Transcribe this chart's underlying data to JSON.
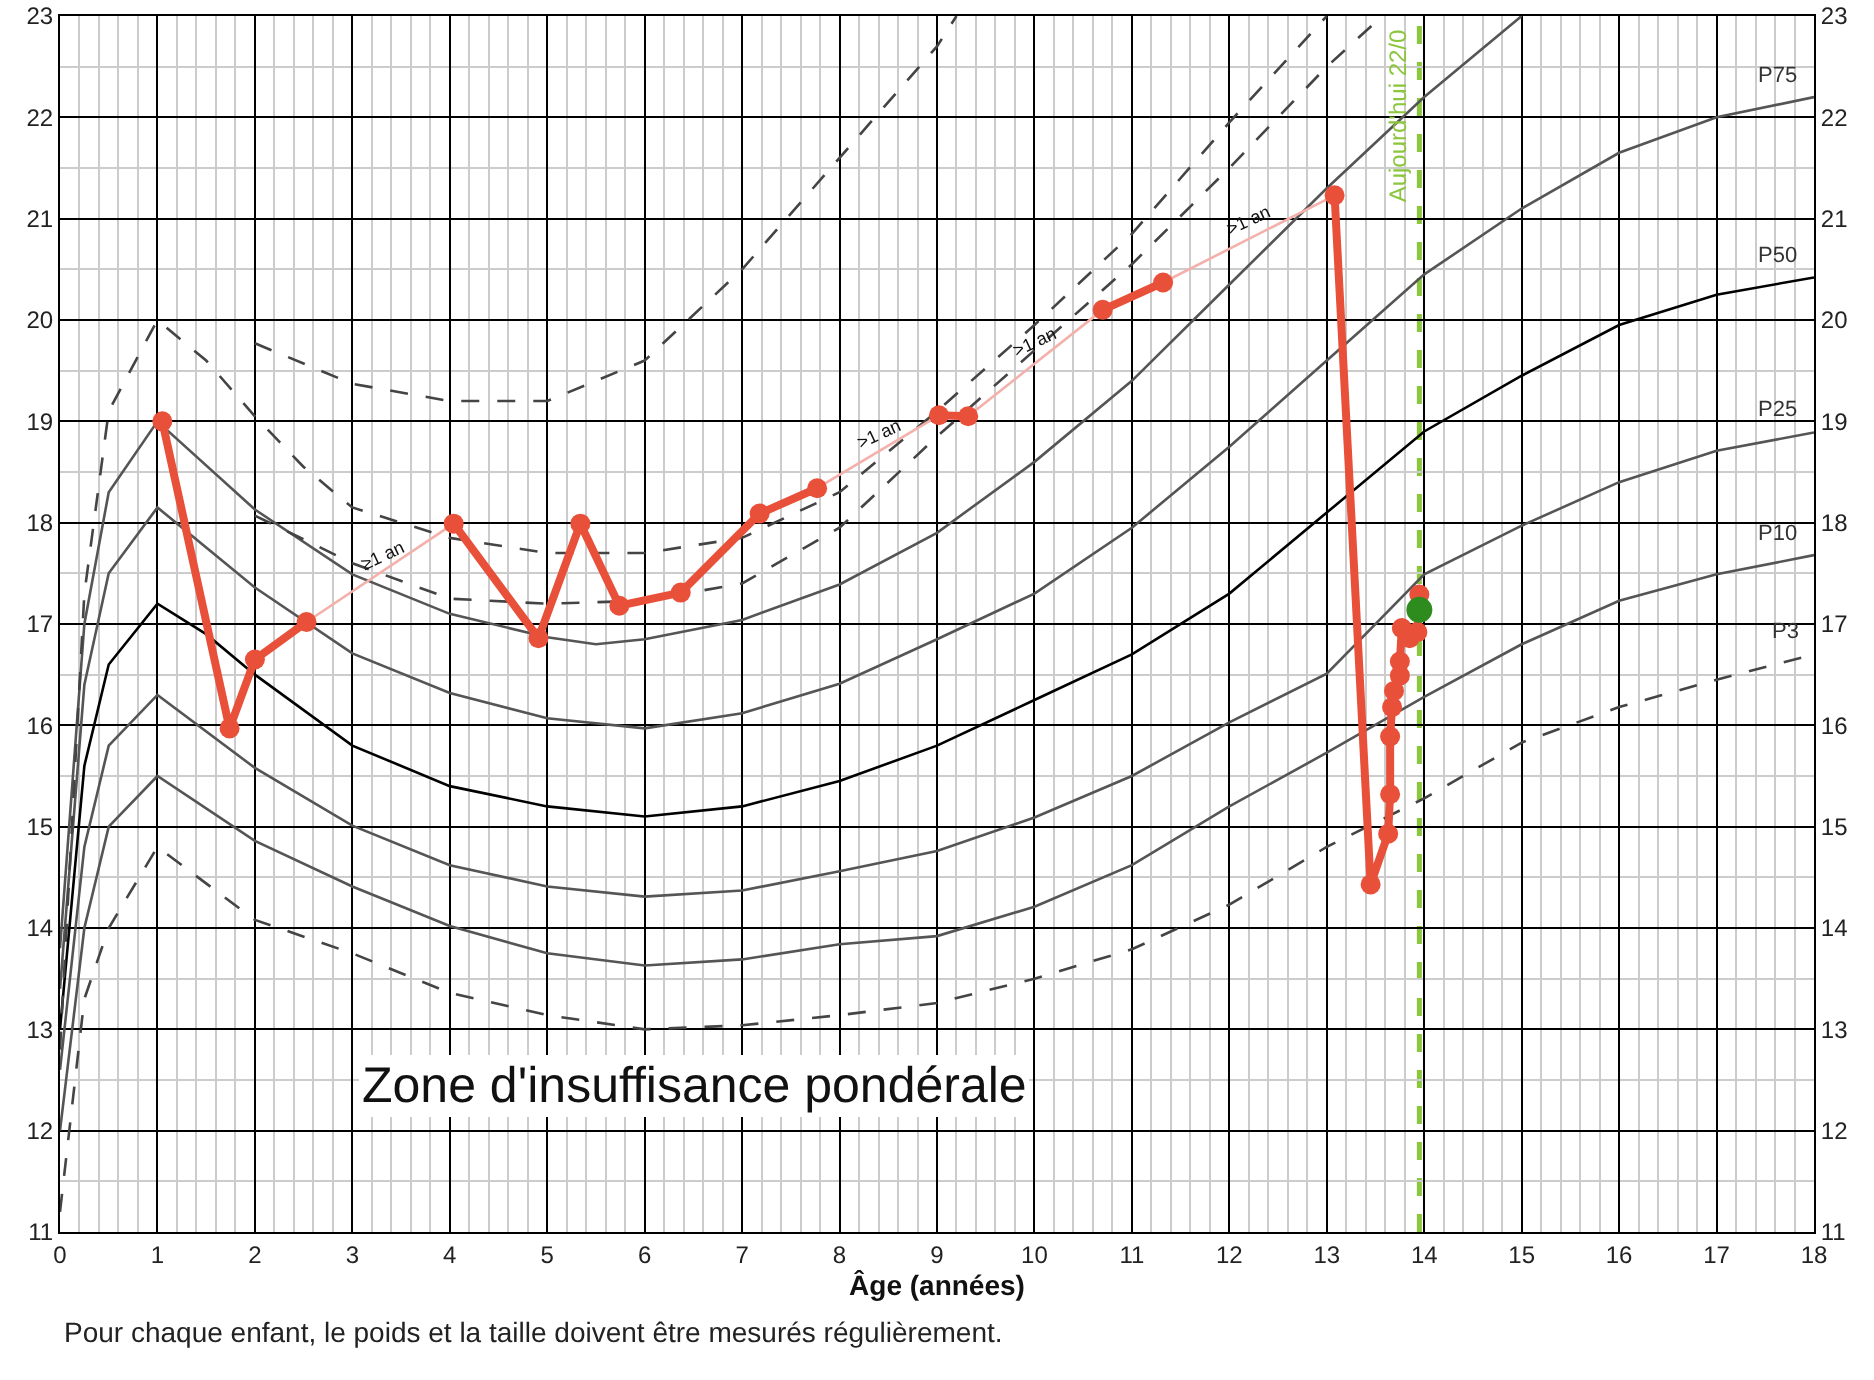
{
  "chart_data": {
    "type": "line",
    "xlabel": "Âge (années)",
    "xlim": [
      0,
      18
    ],
    "xticks": [
      0,
      1,
      2,
      3,
      4,
      5,
      6,
      7,
      8,
      9,
      10,
      11,
      12,
      13,
      14,
      15,
      16,
      17,
      18
    ],
    "ylim": [
      11,
      23
    ],
    "yticks": [
      11,
      12,
      13,
      14,
      15,
      16,
      17,
      18,
      19,
      20,
      21,
      22,
      23
    ],
    "y2lim": [
      11,
      23
    ],
    "y2ticks": [
      11,
      12,
      13,
      14,
      15,
      16,
      17,
      18,
      19,
      20,
      21,
      22,
      23
    ],
    "grid": true,
    "series": [
      {
        "name": "P3",
        "color": "#444444",
        "line_style": "dashed",
        "marker": "none",
        "x": [
          0,
          0.25,
          0.5,
          1,
          2,
          3,
          4,
          5,
          6,
          7,
          8,
          9,
          10,
          11,
          12,
          13,
          14,
          15,
          16,
          17,
          18
        ],
        "values": [
          11.2,
          13.3,
          14.0,
          14.8,
          14.08,
          13.75,
          13.36,
          13.14,
          13.0,
          13.04,
          13.14,
          13.26,
          13.5,
          13.79,
          14.23,
          14.8,
          15.28,
          15.83,
          16.18,
          16.45,
          16.7
        ]
      },
      {
        "name": "P10",
        "color": "#555555",
        "line_style": "solid",
        "marker": "none",
        "x": [
          0,
          0.25,
          0.5,
          1,
          2,
          3,
          4,
          5,
          6,
          7,
          8,
          9,
          10,
          11,
          12,
          13,
          14,
          15,
          16,
          17,
          18
        ],
        "values": [
          12.0,
          14.0,
          15.0,
          15.5,
          14.86,
          14.41,
          14.02,
          13.75,
          13.63,
          13.69,
          13.84,
          13.92,
          14.21,
          14.62,
          15.2,
          15.73,
          16.28,
          16.8,
          17.23,
          17.49,
          17.68
        ]
      },
      {
        "name": "P25",
        "color": "#555555",
        "line_style": "solid",
        "marker": "none",
        "x": [
          0,
          0.25,
          0.5,
          1,
          2,
          3,
          4,
          5,
          6,
          7,
          8,
          9,
          10,
          11,
          12,
          13,
          14,
          15,
          16,
          17,
          18
        ],
        "values": [
          12.6,
          14.8,
          15.8,
          16.3,
          15.58,
          15.01,
          14.62,
          14.41,
          14.31,
          14.37,
          14.56,
          14.76,
          15.09,
          15.5,
          16.03,
          16.51,
          17.49,
          17.97,
          18.4,
          18.71,
          18.89
        ]
      },
      {
        "name": "P50",
        "color": "#000000",
        "line_style": "solid",
        "marker": "none",
        "x": [
          0,
          0.25,
          0.5,
          1,
          1.5,
          2,
          3,
          4,
          5,
          6,
          7,
          8,
          9,
          10,
          11,
          12,
          13,
          14,
          15,
          16,
          17,
          18
        ],
        "values": [
          13.0,
          15.6,
          16.6,
          17.2,
          16.9,
          16.5,
          15.8,
          15.4,
          15.2,
          15.1,
          15.2,
          15.45,
          15.8,
          16.25,
          16.7,
          17.3,
          18.1,
          18.9,
          19.45,
          19.95,
          20.25,
          20.42
        ]
      },
      {
        "name": "P75",
        "color": "#555555",
        "line_style": "solid",
        "marker": "none",
        "x": [
          0,
          0.25,
          0.5,
          1,
          2,
          3,
          4,
          5,
          6,
          7,
          8,
          9,
          10,
          11,
          12,
          13,
          14,
          15,
          16,
          17,
          18
        ],
        "values": [
          13.4,
          16.4,
          17.5,
          18.15,
          17.36,
          16.71,
          16.32,
          16.07,
          15.97,
          16.12,
          16.41,
          16.85,
          17.3,
          17.95,
          18.75,
          19.6,
          20.45,
          21.1,
          21.65,
          22.0,
          22.2
        ]
      },
      {
        "color": "#555555",
        "line_style": "solid",
        "marker": "none",
        "x": [
          0,
          0.25,
          0.5,
          1,
          2,
          3,
          4,
          5,
          5.5,
          6,
          7,
          8,
          9,
          10,
          11,
          12,
          13,
          14,
          15
        ],
        "values": [
          13.8,
          17.0,
          18.3,
          19.0,
          18.13,
          17.49,
          17.1,
          16.87,
          16.8,
          16.85,
          17.04,
          17.39,
          17.9,
          18.6,
          19.4,
          20.35,
          21.3,
          22.2,
          23.0
        ]
      },
      {
        "color": "#444444",
        "line_style": "dashed",
        "marker": "none",
        "x": [
          0,
          0.25,
          0.5,
          1,
          1.5,
          2,
          2.5,
          3,
          4,
          5,
          6,
          7,
          8,
          9,
          10,
          11,
          12,
          13
        ],
        "values": [
          12.8,
          17.3,
          19.1,
          20.0,
          19.6,
          19.05,
          18.55,
          18.15,
          17.85,
          17.7,
          17.7,
          17.85,
          18.3,
          19.1,
          19.95,
          20.85,
          21.95,
          23.0
        ]
      },
      {
        "color": "#444444",
        "line_style": "dashed",
        "marker": "none",
        "x": [
          2,
          3,
          4,
          5,
          6,
          7,
          8,
          9,
          9.2
        ],
        "values": [
          19.77,
          19.37,
          19.2,
          19.2,
          19.6,
          20.5,
          21.6,
          22.7,
          23.0
        ]
      },
      {
        "color": "#444444",
        "line_style": "dashed",
        "marker": "none",
        "x": [
          2,
          3,
          4,
          5,
          6,
          7,
          8,
          9,
          10,
          11,
          12,
          13,
          13.57
        ],
        "values": [
          18.07,
          17.6,
          17.25,
          17.2,
          17.23,
          17.4,
          17.95,
          18.85,
          19.7,
          20.55,
          21.5,
          22.5,
          23.0
        ]
      },
      {
        "color": "#f4b0ab",
        "line_style": "solid",
        "marker": "none",
        "x": [
          2.53,
          4.04,
          5.0,
          7.77,
          9.02,
          9.1,
          9.32,
          10.7,
          11.0,
          11.32,
          13.08
        ],
        "values": [
          17.02,
          17.99,
          null,
          18.34,
          19.06,
          null,
          19.05,
          20.1,
          null,
          20.37,
          21.23
        ]
      },
      {
        "color": "#e8503a",
        "line_style": "solid",
        "marker": "circle",
        "x": [
          1.05,
          1.74,
          2.0,
          2.53,
          3.3,
          4.04,
          4.91,
          5.34,
          5.74,
          6.37,
          7.18,
          7.77,
          8.4,
          9.02,
          9.32,
          10.0,
          10.7,
          11.32,
          12.2,
          13.08,
          13.45,
          13.63,
          13.65,
          13.65,
          13.67,
          13.69,
          13.75,
          13.75,
          13.77,
          13.85,
          13.93,
          13.95
        ],
        "values": [
          19.0,
          15.97,
          16.65,
          17.02,
          null,
          17.99,
          16.86,
          17.99,
          17.18,
          17.31,
          18.09,
          18.34,
          null,
          19.06,
          19.05,
          null,
          20.1,
          20.37,
          null,
          21.23,
          14.43,
          14.93,
          15.32,
          15.89,
          16.18,
          16.34,
          16.49,
          16.63,
          16.96,
          16.86,
          16.92,
          17.29
        ]
      },
      {
        "type": "scatter",
        "color": "#2e8b1e",
        "marker": "circle",
        "x": [
          13.95
        ],
        "values": [
          17.14
        ]
      }
    ],
    "ref_lines": [
      {
        "axis": "x",
        "value": 13.95,
        "label": "Aujourd'hui 22/0",
        "color": "#8cc63e",
        "line_style": "dashed"
      }
    ],
    "annotations": [
      "Zone d'insuffisance pondérale",
      {
        "text": "≥1 an",
        "x": 3.3,
        "y": 17.5
      },
      {
        "text": ">1 an",
        "x": 8.4,
        "y": 18.7
      },
      {
        "text": ">1 an",
        "x": 10.0,
        "y": 19.6
      },
      {
        "text": ">1 an",
        "x": 12.2,
        "y": 20.8
      },
      "Pour chaque enfant, le poids et la taille doivent être mesurés régulièrement."
    ]
  }
}
